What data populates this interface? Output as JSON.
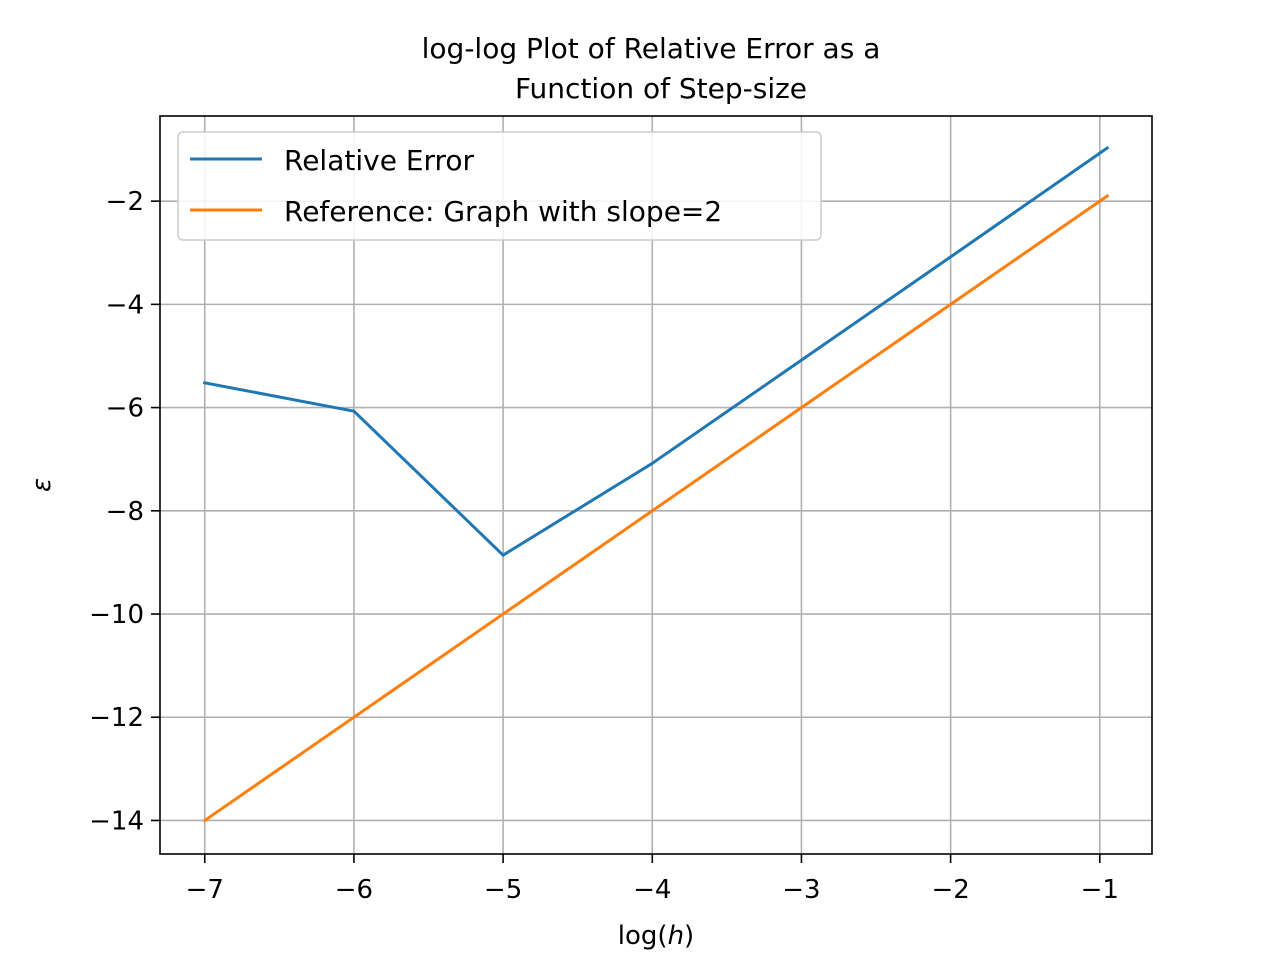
{
  "chart_data": {
    "type": "line",
    "title_lines": [
      "log-log Plot of Relative Error as a",
      "Function of Step-size"
    ],
    "xlabel": "log(",
    "xlabel_var": "h",
    "xlabel_close": ")",
    "ylabel": "ε",
    "xlim": [
      -7.3,
      -0.65
    ],
    "ylim": [
      -14.65,
      -0.35
    ],
    "xticks": [
      -7,
      -6,
      -5,
      -4,
      -3,
      -2,
      -1
    ],
    "yticks": [
      -2,
      -4,
      -6,
      -8,
      -10,
      -12,
      -14
    ],
    "xtick_labels": [
      "−7",
      "−6",
      "−5",
      "−4",
      "−3",
      "−2",
      "−1"
    ],
    "ytick_labels": [
      "−2",
      "−4",
      "−6",
      "−8",
      "−10",
      "−12",
      "−14"
    ],
    "grid": true,
    "legend_position": "upper-left",
    "series": [
      {
        "name": "Relative Error",
        "color": "#1f77b4",
        "x": [
          -7,
          -6,
          -5,
          -4,
          -3,
          -2,
          -0.95
        ],
        "y": [
          -5.52,
          -6.07,
          -8.86,
          -7.08,
          -5.08,
          -3.08,
          -0.97
        ]
      },
      {
        "name": "Reference: Graph with slope=2",
        "color": "#ff7f0e",
        "x": [
          -7,
          -0.95
        ],
        "y": [
          -14,
          -1.9
        ]
      }
    ]
  }
}
